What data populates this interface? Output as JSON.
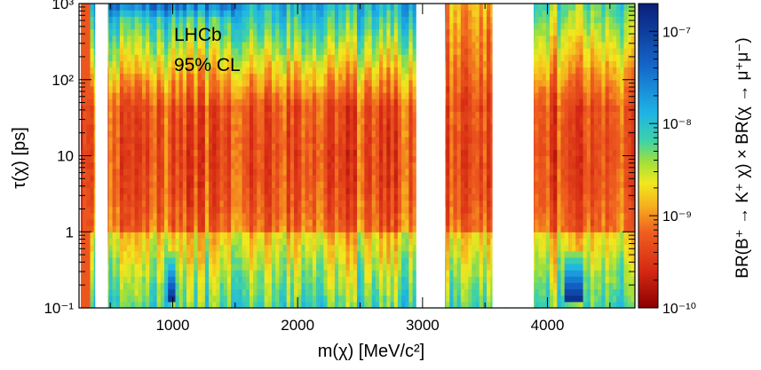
{
  "chart_data": {
    "type": "heatmap",
    "title": "",
    "annotations": [
      "LHCb",
      "95% CL"
    ],
    "xlabel": "m(χ) [MeV/c²]",
    "ylabel": "τ(χ) [ps]",
    "zlabel": "BR(B⁺ → K⁺ χ) × BR(χ → μ⁺μ⁻)",
    "xlim": [
      250,
      4700
    ],
    "ylim": [
      0.1,
      1000
    ],
    "yscale": "log",
    "zlim": [
      1e-10,
      2e-07
    ],
    "zscale": "log",
    "x_ticks": [
      {
        "value": 1000,
        "label": "1000"
      },
      {
        "value": 2000,
        "label": "2000"
      },
      {
        "value": 3000,
        "label": "3000"
      },
      {
        "value": 4000,
        "label": "4000"
      }
    ],
    "y_ticks": [
      {
        "value": 0.1,
        "label": "10⁻¹"
      },
      {
        "value": 1,
        "label": "1"
      },
      {
        "value": 10,
        "label": "10"
      },
      {
        "value": 100,
        "label": "10²"
      },
      {
        "value": 1000,
        "label": "10³"
      }
    ],
    "z_ticks": [
      {
        "value": 1e-10,
        "label": "10⁻¹⁰"
      },
      {
        "value": 1e-09,
        "label": "10⁻⁹"
      },
      {
        "value": 1e-08,
        "label": "10⁻⁸"
      },
      {
        "value": 1e-07,
        "label": "10⁻⁷"
      }
    ],
    "excluded_mass_regions_MeV": [
      [
        380,
        480
      ],
      [
        2950,
        3180
      ],
      [
        3560,
        3890
      ]
    ],
    "high_limit_spots": [
      {
        "mass_range_MeV": [
          960,
          1030
        ],
        "lifetime_range_ps": [
          0.13,
          0.6
        ]
      },
      {
        "mass_range_MeV": [
          4150,
          4280
        ],
        "lifetime_range_ps": [
          0.13,
          0.6
        ]
      }
    ],
    "colors": {
      "min": "#8b0000",
      "low": "#e8321e",
      "mid": "#f5e61e",
      "high": "#1eb4e6",
      "max": "#0a1e78"
    }
  }
}
